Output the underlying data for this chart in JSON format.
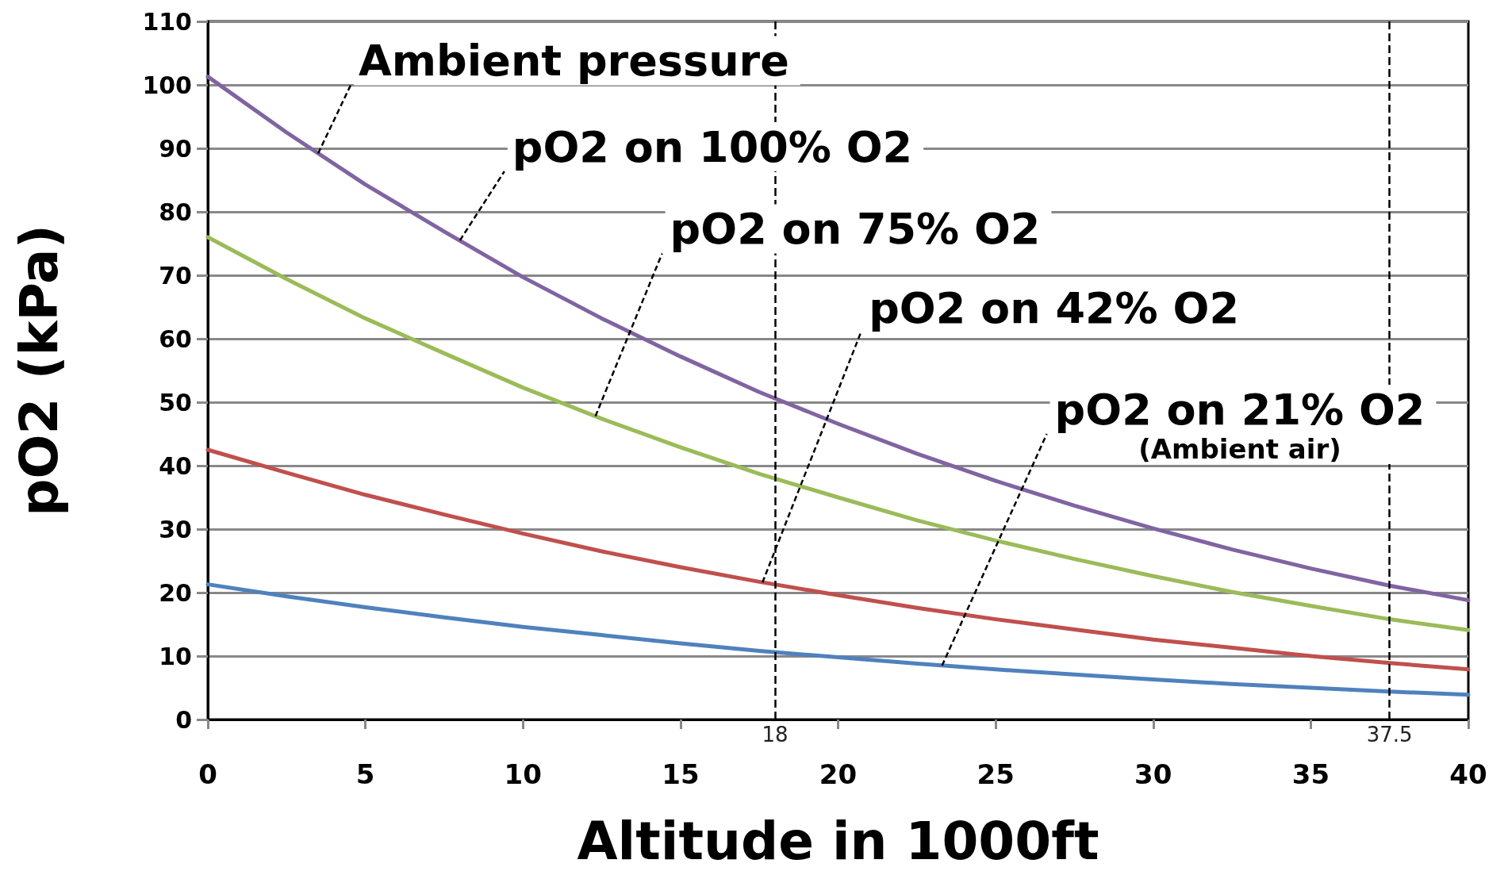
{
  "chart_data": {
    "type": "line",
    "xlabel": "Altitude in 1000ft",
    "ylabel": "pO2 (kPa)",
    "x": [
      0,
      2.5,
      5,
      7.5,
      10,
      12.5,
      15,
      17.5,
      20,
      22.5,
      25,
      27.5,
      30,
      32.5,
      35,
      37.5,
      40
    ],
    "series": [
      {
        "color": "#8064a2",
        "values": [
          101.3,
          92.5,
          84.3,
          76.9,
          69.7,
          63.2,
          57.2,
          51.6,
          46.6,
          41.9,
          37.6,
          33.7,
          30.1,
          26.8,
          23.8,
          21.1,
          18.8
        ]
      },
      {
        "color": "#9bbb59",
        "values": [
          76,
          69.4,
          63.2,
          57.7,
          52.3,
          47.4,
          42.9,
          38.7,
          35,
          31.4,
          28.2,
          25.3,
          22.6,
          20.1,
          17.9,
          15.8,
          14.1
        ]
      },
      {
        "color": "#c0504d",
        "values": [
          42.5,
          38.9,
          35.4,
          32.3,
          29.3,
          26.5,
          24,
          21.7,
          19.6,
          17.6,
          15.8,
          14.2,
          12.6,
          11.3,
          10,
          8.9,
          7.9
        ]
      },
      {
        "color": "#4f81bd",
        "values": [
          21.3,
          19.4,
          17.7,
          16.1,
          14.6,
          13.3,
          12,
          10.8,
          9.8,
          8.8,
          7.9,
          7.1,
          6.3,
          5.6,
          5,
          4.4,
          3.9
        ]
      }
    ],
    "xlim": [
      0,
      40
    ],
    "xticks": [
      0,
      5,
      10,
      15,
      20,
      25,
      30,
      35,
      40
    ],
    "ylim": [
      0,
      110
    ],
    "yticks": [
      0,
      10,
      20,
      30,
      40,
      50,
      60,
      70,
      80,
      90,
      100,
      110
    ],
    "grid": "y",
    "marker": "none",
    "line_style": "solid",
    "ref_lines": [
      {
        "axis": "x",
        "value": 18,
        "label": "18",
        "line_style": "dashed"
      },
      {
        "axis": "x",
        "value": 37.5,
        "label": "37.5",
        "line_style": "dashed"
      }
    ],
    "annotations": [
      {
        "text": "Ambient pressure",
        "x": 3.5,
        "y": 89.2
      },
      {
        "text": "pO2 on 100% O2",
        "x": 8,
        "y": 75.5
      },
      {
        "text": "pO2 on 75% O2",
        "x": 12.3,
        "y": 47.8
      },
      {
        "text": "pO2 on 42% O2",
        "x": 17.6,
        "y": 21.6
      },
      {
        "text": "pO2 on 21% O2\n(Ambient air)",
        "x": 23.3,
        "y": 8.5
      }
    ]
  }
}
